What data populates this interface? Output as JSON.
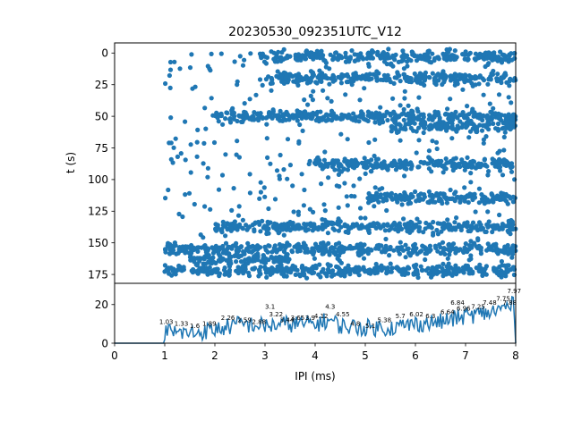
{
  "chart_data": [
    {
      "type": "scatter",
      "title": "20230530_092351UTC_V12",
      "xlabel": "",
      "ylabel": "t (s)",
      "xlim": [
        0,
        8
      ],
      "ylim": [
        182,
        -8
      ],
      "y_inverted": true,
      "yticks": [
        0,
        25,
        50,
        75,
        100,
        125,
        150,
        175
      ],
      "color": "#1f77b4",
      "x_range_of_points": [
        1.0,
        8.0
      ],
      "dense_time_bands": [
        {
          "t": 3,
          "x_from": 2.9,
          "x_to": 8.0
        },
        {
          "t": 20,
          "x_from": 2.9,
          "x_to": 8.0
        },
        {
          "t": 50,
          "x_from": 2.0,
          "x_to": 8.0
        },
        {
          "t": 58,
          "x_from": 5.5,
          "x_to": 8.0
        },
        {
          "t": 88,
          "x_from": 4.0,
          "x_to": 8.0
        },
        {
          "t": 115,
          "x_from": 5.0,
          "x_to": 8.0
        },
        {
          "t": 137,
          "x_from": 2.0,
          "x_to": 8.0
        },
        {
          "t": 155,
          "x_from": 1.0,
          "x_to": 8.0
        },
        {
          "t": 163,
          "x_from": 1.5,
          "x_to": 3.5
        },
        {
          "t": 172,
          "x_from": 1.0,
          "x_to": 8.0
        }
      ]
    },
    {
      "type": "line",
      "xlabel": "IPI (ms)",
      "ylabel": "",
      "xlim": [
        0,
        8
      ],
      "ylim": [
        0,
        31
      ],
      "xticks": [
        0,
        1,
        2,
        3,
        4,
        5,
        6,
        7,
        8
      ],
      "yticks": [
        0,
        20
      ],
      "color": "#1f77b4",
      "profile_x": [
        0,
        0.98,
        1.0,
        1.5,
        2.0,
        2.5,
        3.0,
        3.5,
        4.0,
        4.3,
        4.5,
        5.0,
        5.5,
        6.0,
        6.5,
        7.0,
        7.5,
        7.97,
        8.0
      ],
      "profile_y": [
        0,
        0,
        6,
        5,
        7,
        10,
        9,
        10,
        10,
        12,
        9,
        8,
        8,
        10,
        11,
        14,
        16,
        20,
        0
      ],
      "peak_labels": [
        {
          "text": "1.03",
          "x": 1.03,
          "y": 9
        },
        {
          "text": "1.33",
          "x": 1.33,
          "y": 8
        },
        {
          "text": "1.6",
          "x": 1.6,
          "y": 7
        },
        {
          "text": "1.89",
          "x": 1.89,
          "y": 8
        },
        {
          "text": "2.26",
          "x": 2.26,
          "y": 11
        },
        {
          "text": "2.59",
          "x": 2.59,
          "y": 10
        },
        {
          "text": "2.88",
          "x": 2.88,
          "y": 9
        },
        {
          "text": "3.1",
          "x": 3.1,
          "y": 17
        },
        {
          "text": "3.22",
          "x": 3.22,
          "y": 13
        },
        {
          "text": "3.44",
          "x": 3.44,
          "y": 10
        },
        {
          "text": "3.65",
          "x": 3.65,
          "y": 11
        },
        {
          "text": "3.9",
          "x": 3.9,
          "y": 11
        },
        {
          "text": "4.12",
          "x": 4.12,
          "y": 12
        },
        {
          "text": "4.3",
          "x": 4.3,
          "y": 17
        },
        {
          "text": "4.55",
          "x": 4.55,
          "y": 13
        },
        {
          "text": "4.8",
          "x": 4.8,
          "y": 8
        },
        {
          "text": "5.1",
          "x": 5.1,
          "y": 7
        },
        {
          "text": "5.38",
          "x": 5.38,
          "y": 10
        },
        {
          "text": "5.7",
          "x": 5.7,
          "y": 12
        },
        {
          "text": "6.02",
          "x": 6.02,
          "y": 13
        },
        {
          "text": "6.3",
          "x": 6.3,
          "y": 12
        },
        {
          "text": "6.64",
          "x": 6.64,
          "y": 14
        },
        {
          "text": "6.84",
          "x": 6.84,
          "y": 19
        },
        {
          "text": "6.96",
          "x": 6.96,
          "y": 16
        },
        {
          "text": "7.25",
          "x": 7.25,
          "y": 17
        },
        {
          "text": "7.48",
          "x": 7.48,
          "y": 19
        },
        {
          "text": "7.75",
          "x": 7.75,
          "y": 21
        },
        {
          "text": "7.88",
          "x": 7.88,
          "y": 19
        },
        {
          "text": "7.97",
          "x": 7.97,
          "y": 25
        }
      ]
    }
  ]
}
